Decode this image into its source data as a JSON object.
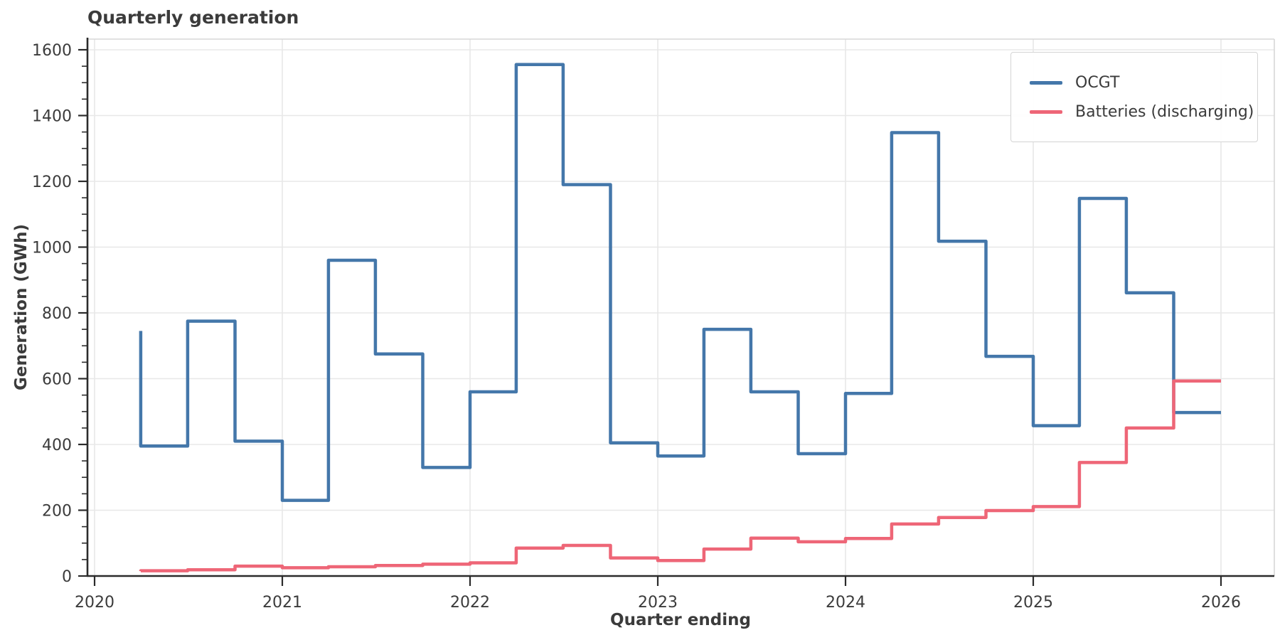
{
  "figure": {
    "title": "Quarterly generation",
    "background": "#ffffff"
  },
  "axes": {
    "x_label": "Quarter ending",
    "y_label": "Generation (GWh)",
    "x_tick_labels": [
      "2020",
      "2021",
      "2022",
      "2023",
      "2024",
      "2025",
      "2026"
    ],
    "y_tick_labels": [
      0,
      200,
      400,
      600,
      800,
      1000,
      1200,
      1400,
      1600
    ],
    "y_minor_tick_step": 50,
    "grid": true,
    "grid_color": "#e8e8e8",
    "spine_color": "#2b2b2b",
    "tick_label_color": "#3b3b3b"
  },
  "legend": {
    "position": "upper right"
  },
  "chart_data": {
    "type": "line",
    "step_style": "steps-pre",
    "x": [
      "2020-03-31",
      "2020-06-30",
      "2020-09-30",
      "2020-12-31",
      "2021-03-31",
      "2021-06-30",
      "2021-09-30",
      "2021-12-31",
      "2022-03-31",
      "2022-06-30",
      "2022-09-30",
      "2022-12-31",
      "2023-03-31",
      "2023-06-30",
      "2023-09-30",
      "2023-12-31",
      "2024-03-31",
      "2024-06-30",
      "2024-09-30",
      "2024-12-31",
      "2025-03-31",
      "2025-06-30",
      "2025-09-30",
      "2025-12-31"
    ],
    "series": [
      {
        "name": "OCGT",
        "color": "#4477AA",
        "values": [
          745,
          395,
          775,
          410,
          230,
          960,
          675,
          330,
          560,
          1555,
          1190,
          405,
          365,
          750,
          560,
          372,
          555,
          1348,
          1018,
          668,
          457,
          1148,
          861,
          497
        ]
      },
      {
        "name": "Batteries (discharging)",
        "color": "#EE6677",
        "values": [
          15,
          16,
          19,
          30,
          25,
          28,
          32,
          36,
          40,
          85,
          93,
          55,
          47,
          82,
          115,
          104,
          114,
          158,
          178,
          199,
          211,
          345,
          450,
          593
        ]
      }
    ],
    "title": "Quarterly generation",
    "xlabel": "Quarter ending",
    "ylabel": "Generation (GWh)",
    "xlim_years": [
      2019.96,
      2026.28
    ],
    "ylim": [
      0,
      1632
    ],
    "legend_position": "upper right"
  }
}
